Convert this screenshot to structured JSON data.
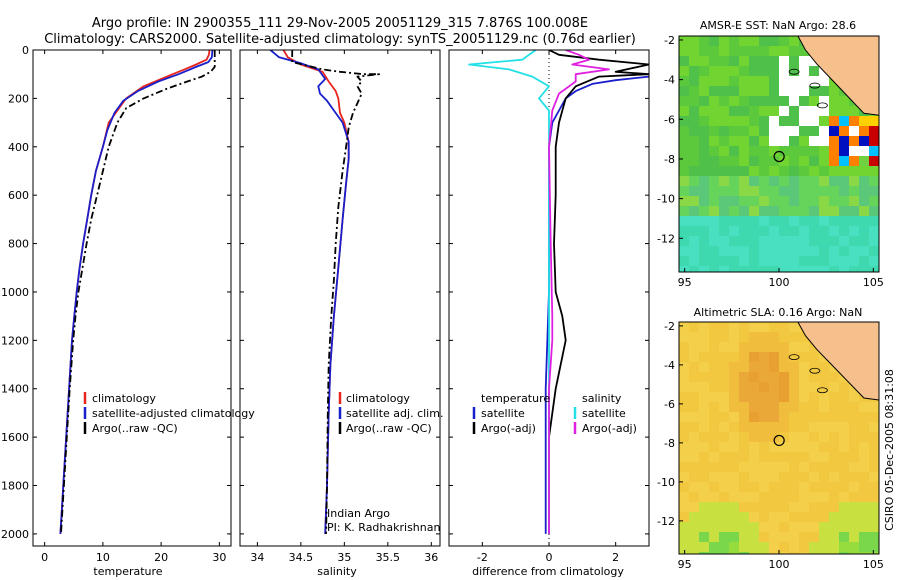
{
  "header": {
    "line1": "Argo profile: IN 2900355_111 29-Nov-2005 20051129_315 7.876S 100.008E",
    "line2": "Climatology: CARS2000. Satellite-adjusted climatology: synTS_20051129.nc (0.76d earlier)"
  },
  "colors": {
    "clim": "#e8251b",
    "sat": "#1a1fcc",
    "argo": "#000000",
    "sal_sat": "#22e0e6",
    "sal_argo": "#e020e0",
    "land": "#f5c08c"
  },
  "chart_data": [
    {
      "id": "temperature",
      "type": "line",
      "xlabel": "temperature",
      "ylabel": "",
      "xlim": [
        -2,
        32
      ],
      "ylim": [
        2050,
        0
      ],
      "xticks": [
        0,
        10,
        20,
        30
      ],
      "yticks": [
        0,
        200,
        400,
        600,
        800,
        1000,
        1200,
        1400,
        1600,
        1800,
        2000
      ],
      "legend": [
        "climatology",
        "satellite-adjusted climatology",
        "Argo(..raw -QC)"
      ],
      "series": [
        {
          "name": "climatology",
          "color": "clim",
          "dash": "",
          "points": [
            [
              28.3,
              0
            ],
            [
              28.2,
              20
            ],
            [
              27.8,
              40
            ],
            [
              26,
              60
            ],
            [
              24,
              80
            ],
            [
              21,
              110
            ],
            [
              17,
              150
            ],
            [
              14,
              200
            ],
            [
              12.5,
              250
            ],
            [
              11,
              300
            ],
            [
              10,
              400
            ],
            [
              8.8,
              500
            ],
            [
              8,
              600
            ],
            [
              7.3,
              700
            ],
            [
              6.6,
              800
            ],
            [
              6,
              900
            ],
            [
              5.5,
              1000
            ],
            [
              5.1,
              1100
            ],
            [
              4.7,
              1200
            ],
            [
              4.2,
              1400
            ],
            [
              3.7,
              1600
            ],
            [
              3.2,
              1800
            ],
            [
              2.7,
              2000
            ]
          ]
        },
        {
          "name": "satellite-adjusted climatology",
          "color": "sat",
          "dash": "",
          "points": [
            [
              28.8,
              0
            ],
            [
              28.7,
              30
            ],
            [
              28.1,
              50
            ],
            [
              26,
              70
            ],
            [
              23,
              100
            ],
            [
              19.5,
              130
            ],
            [
              16,
              170
            ],
            [
              13.5,
              210
            ],
            [
              12,
              260
            ],
            [
              10.8,
              330
            ],
            [
              10,
              400
            ],
            [
              8.8,
              500
            ],
            [
              8,
              600
            ],
            [
              7.3,
              700
            ],
            [
              6.6,
              800
            ],
            [
              6,
              900
            ],
            [
              5.5,
              1000
            ],
            [
              5.1,
              1100
            ],
            [
              4.7,
              1200
            ],
            [
              4.2,
              1400
            ],
            [
              3.7,
              1600
            ],
            [
              3.2,
              1800
            ],
            [
              2.7,
              2000
            ]
          ]
        },
        {
          "name": "Argo(..raw -QC)",
          "color": "argo",
          "dash": "7 3 2 3",
          "points": [
            [
              29.2,
              0
            ],
            [
              29.2,
              70
            ],
            [
              28.5,
              90
            ],
            [
              27,
              110
            ],
            [
              24.5,
              130
            ],
            [
              21,
              160
            ],
            [
              17,
              200
            ],
            [
              14,
              240
            ],
            [
              12.5,
              300
            ],
            [
              11,
              400
            ],
            [
              10,
              500
            ],
            [
              9,
              600
            ],
            [
              8,
              700
            ],
            [
              7.2,
              800
            ],
            [
              6.5,
              900
            ],
            [
              5.8,
              1000
            ],
            [
              5.3,
              1100
            ],
            [
              4.9,
              1200
            ],
            [
              4.3,
              1400
            ],
            [
              3.8,
              1600
            ],
            [
              3.3,
              1800
            ],
            [
              2.8,
              2000
            ]
          ]
        }
      ]
    },
    {
      "id": "salinity",
      "type": "line",
      "xlabel": "salinity",
      "ylabel": "",
      "xlim": [
        33.8,
        36.1
      ],
      "ylim": [
        2050,
        0
      ],
      "xticks": [
        34,
        34.5,
        35,
        35.5,
        36
      ],
      "yticks": [
        0,
        200,
        400,
        600,
        800,
        1000,
        1200,
        1400,
        1600,
        1800,
        2000
      ],
      "legend": [
        "climatology",
        "satellite adj. clim.",
        "Argo(..raw -QC)"
      ],
      "annotation": [
        "Indian Argo",
        "PI: K. Radhakrishnan"
      ],
      "series": [
        {
          "name": "climatology",
          "color": "clim",
          "dash": "",
          "points": [
            [
              34.3,
              0
            ],
            [
              34.35,
              30
            ],
            [
              34.5,
              60
            ],
            [
              34.75,
              90
            ],
            [
              34.82,
              130
            ],
            [
              34.9,
              170
            ],
            [
              34.93,
              200
            ],
            [
              34.95,
              260
            ],
            [
              35.0,
              300
            ],
            [
              35.05,
              380
            ],
            [
              35.05,
              450
            ],
            [
              35.02,
              550
            ],
            [
              34.98,
              700
            ],
            [
              34.93,
              900
            ],
            [
              34.88,
              1100
            ],
            [
              34.84,
              1300
            ],
            [
              34.82,
              1500
            ],
            [
              34.8,
              1800
            ],
            [
              34.78,
              2000
            ]
          ]
        },
        {
          "name": "satellite adj. clim.",
          "color": "sat",
          "dash": "",
          "points": [
            [
              34.15,
              0
            ],
            [
              34.25,
              30
            ],
            [
              34.5,
              55
            ],
            [
              34.7,
              80
            ],
            [
              34.78,
              120
            ],
            [
              34.7,
              150
            ],
            [
              34.72,
              180
            ],
            [
              34.8,
              210
            ],
            [
              34.88,
              250
            ],
            [
              34.98,
              300
            ],
            [
              35.05,
              380
            ],
            [
              35.05,
              450
            ],
            [
              35.02,
              550
            ],
            [
              34.98,
              700
            ],
            [
              34.93,
              900
            ],
            [
              34.88,
              1100
            ],
            [
              34.84,
              1300
            ],
            [
              34.82,
              1500
            ],
            [
              34.8,
              1800
            ],
            [
              34.78,
              2000
            ]
          ]
        },
        {
          "name": "Argo(..raw -QC)",
          "color": "argo",
          "dash": "7 3 2 3",
          "points": [
            [
              34.4,
              0
            ],
            [
              34.4,
              50
            ],
            [
              34.75,
              80
            ],
            [
              34.95,
              90
            ],
            [
              35.22,
              100
            ],
            [
              35.4,
              100
            ],
            [
              35.15,
              110
            ],
            [
              35.2,
              130
            ],
            [
              35.15,
              150
            ],
            [
              35.2,
              180
            ],
            [
              35.15,
              220
            ],
            [
              35.1,
              260
            ],
            [
              35.05,
              320
            ],
            [
              35.02,
              400
            ],
            [
              34.98,
              500
            ],
            [
              34.93,
              650
            ],
            [
              34.9,
              800
            ],
            [
              34.88,
              950
            ],
            [
              34.85,
              1100
            ],
            [
              34.82,
              1300
            ],
            [
              34.81,
              1500
            ],
            [
              34.8,
              1800
            ],
            [
              34.79,
              2000
            ]
          ]
        }
      ]
    },
    {
      "id": "difference",
      "type": "line",
      "xlabel": "difference from climatology",
      "ylabel": "",
      "xlim": [
        -3,
        3
      ],
      "ylim": [
        2050,
        0
      ],
      "xticks": [
        -2,
        0,
        2
      ],
      "yticks": [
        0,
        200,
        400,
        600,
        800,
        1000,
        1200,
        1400,
        1600,
        1800,
        2000
      ],
      "legend_left": [
        "temperature",
        "satellite",
        "Argo(-adj)"
      ],
      "legend_right": [
        "salinity",
        "satellite",
        "Argo(-adj)"
      ],
      "series": [
        {
          "name": "temperature satellite",
          "color": "sat",
          "dash": "",
          "points": [
            [
              3,
              110
            ],
            [
              2,
              125
            ],
            [
              1.3,
              140
            ],
            [
              0.8,
              170
            ],
            [
              0.5,
              200
            ],
            [
              0.3,
              250
            ],
            [
              0.1,
              300
            ],
            [
              0,
              400
            ],
            [
              0,
              600
            ],
            [
              0,
              1000
            ],
            [
              -0.1,
              1400
            ],
            [
              -0.1,
              1800
            ],
            [
              -0.1,
              2000
            ]
          ]
        },
        {
          "name": "temperature Argo(-adj)",
          "color": "argo",
          "dash": "",
          "points": [
            [
              0,
              0
            ],
            [
              0.3,
              20
            ],
            [
              1.5,
              40
            ],
            [
              3,
              60
            ],
            [
              2,
              90
            ],
            [
              3,
              100
            ],
            [
              1.5,
              110
            ],
            [
              0.8,
              150
            ],
            [
              0.5,
              200
            ],
            [
              0.3,
              300
            ],
            [
              0.2,
              400
            ],
            [
              0.2,
              600
            ],
            [
              0.15,
              800
            ],
            [
              0.2,
              1000
            ],
            [
              0.4,
              1100
            ],
            [
              0.5,
              1200
            ],
            [
              0.2,
              1400
            ],
            [
              0,
              1600
            ],
            [
              0,
              1800
            ],
            [
              0,
              2000
            ]
          ]
        },
        {
          "name": "salinity satellite",
          "color": "sal_sat",
          "dash": "",
          "points": [
            [
              -0.4,
              0
            ],
            [
              -0.8,
              40
            ],
            [
              -2.4,
              60
            ],
            [
              -1.2,
              80
            ],
            [
              -0.5,
              110
            ],
            [
              0,
              150
            ],
            [
              -0.3,
              200
            ],
            [
              0,
              250
            ],
            [
              0,
              300
            ],
            [
              0,
              600
            ],
            [
              0,
              1000
            ],
            [
              0,
              1400
            ],
            [
              0,
              1800
            ],
            [
              0,
              2000
            ]
          ]
        },
        {
          "name": "salinity Argo(-adj)",
          "color": "sal_argo",
          "dash": "",
          "points": [
            [
              0.5,
              0
            ],
            [
              0.9,
              20
            ],
            [
              1.2,
              40
            ],
            [
              0.7,
              60
            ],
            [
              1.8,
              80
            ],
            [
              0.8,
              100
            ],
            [
              0.8,
              130
            ],
            [
              0.3,
              180
            ],
            [
              0.1,
              250
            ],
            [
              0,
              400
            ],
            [
              0.05,
              800
            ],
            [
              0.1,
              1100
            ],
            [
              0.1,
              1200
            ],
            [
              0,
              1400
            ],
            [
              0,
              2000
            ]
          ]
        }
      ]
    },
    {
      "id": "sst-map",
      "type": "heatmap",
      "title": "AMSR-E SST: NaN Argo: 28.6",
      "xlim": [
        94.7,
        105.3
      ],
      "ylim": [
        -13.7,
        -1.8
      ],
      "xticks": [
        95,
        100,
        105
      ],
      "yticks": [
        -2,
        -4,
        -6,
        -8,
        -10,
        -12
      ],
      "marker": [
        100.008,
        -7.876
      ]
    },
    {
      "id": "sla-map",
      "type": "heatmap",
      "title": "Altimetric SLA: 0.16 Argo: NaN",
      "xlim": [
        94.7,
        105.3
      ],
      "ylim": [
        -13.7,
        -1.8
      ],
      "xticks": [
        95,
        100,
        105
      ],
      "yticks": [
        -2,
        -4,
        -6,
        -8,
        -10,
        -12
      ],
      "marker": [
        100.008,
        -7.876
      ]
    }
  ],
  "footer": {
    "stamp": "CSIRO 05-Dec-2005 08:31:08"
  }
}
